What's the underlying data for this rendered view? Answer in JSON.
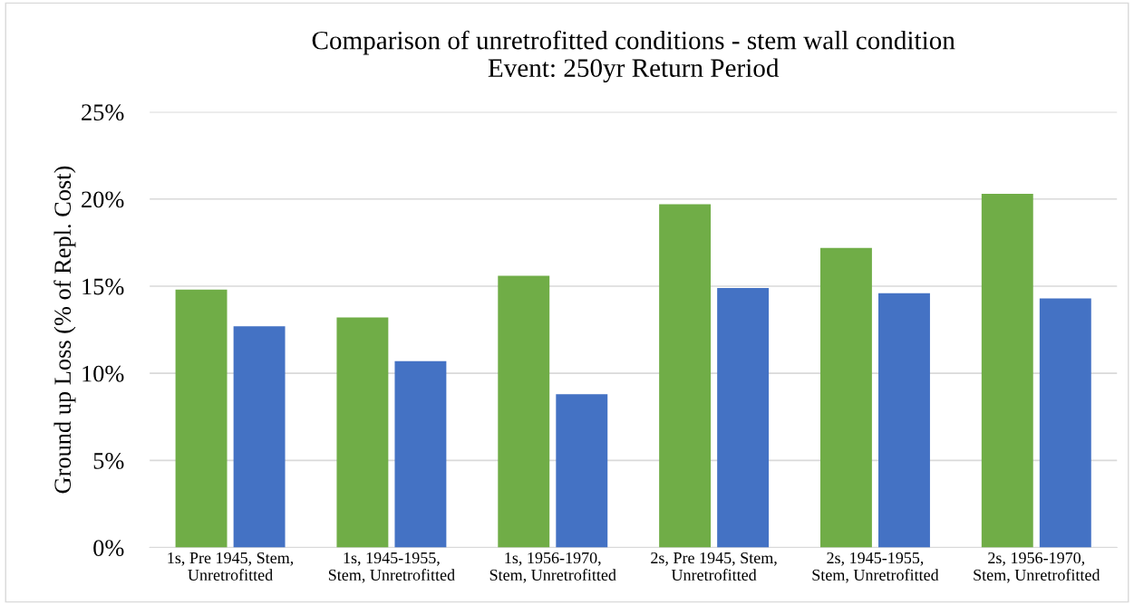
{
  "chart_data": {
    "type": "bar",
    "title": "Comparison of unretrofitted conditions - stem wall condition\nEvent: 250yr Return Period",
    "ylabel": "Ground up Loss (% of Repl. Cost)",
    "categories": [
      "1s, Pre 1945, Stem,\nUnretrofitted",
      "1s, 1945-1955,\nStem, Unretrofitted",
      "1s, 1956-1970,\nStem, Unretrofitted",
      "2s, Pre 1945, Stem,\nUnretrofitted",
      "2s, 1945-1955,\nStem, Unretrofitted",
      "2s, 1956-1970,\nStem, Unretrofitted"
    ],
    "series": [
      {
        "color": "#70ad47",
        "values": [
          14.8,
          13.2,
          15.6,
          19.7,
          17.2,
          20.3
        ]
      },
      {
        "color": "#4472c4",
        "values": [
          12.7,
          10.7,
          8.8,
          14.9,
          14.6,
          14.3
        ]
      }
    ],
    "ylim": [
      0,
      25
    ],
    "yticks": [
      {
        "value": 0,
        "label": "0%"
      },
      {
        "value": 5,
        "label": "5%"
      },
      {
        "value": 10,
        "label": "10%"
      },
      {
        "value": 15,
        "label": "15%"
      },
      {
        "value": 20,
        "label": "20%"
      },
      {
        "value": 25,
        "label": "25%"
      }
    ],
    "grid": "y",
    "legend": false
  }
}
